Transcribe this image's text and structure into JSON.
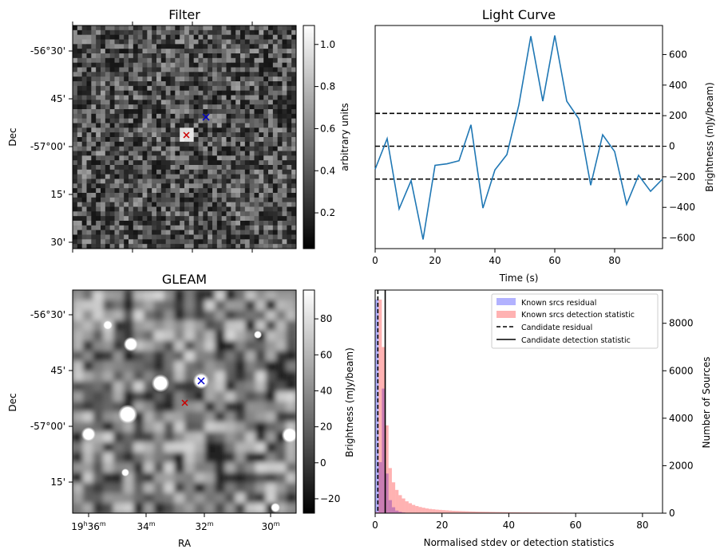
{
  "figure": {
    "panels": {
      "filter": {
        "title": "Filter",
        "ylabel": "Dec",
        "dec_ticks": [
          "-56°30'",
          "45'",
          "-57°00'",
          "15'",
          "30'"
        ],
        "colorbar": {
          "label": "arbitrary units",
          "ticks": [
            "0.2",
            "0.4",
            "0.6",
            "0.8",
            "1.0"
          ],
          "range": [
            0.03,
            1.09
          ],
          "colormap": "gray"
        },
        "markers": [
          {
            "name": "Candidate position",
            "symbol": "x",
            "color": "#0000cc"
          },
          {
            "name": "Nearby source",
            "symbol": "x",
            "color": "#cc0000"
          }
        ]
      },
      "gleam": {
        "title": "GLEAM",
        "ylabel": "Dec",
        "xlabel": "RA",
        "dec_ticks": [
          "-56°30'",
          "45'",
          "-57°00'",
          "15'"
        ],
        "ra_ticks": [
          {
            "main": "19",
            "sup1": "h",
            "mid": "36",
            "sup2": "m"
          },
          {
            "main": "34",
            "sup2": "m"
          },
          {
            "main": "32",
            "sup2": "m"
          },
          {
            "main": "30",
            "sup2": "m"
          }
        ],
        "colorbar": {
          "label": "Brightness (mJy/beam)",
          "ticks": [
            "−20",
            "0",
            "20",
            "40",
            "60",
            "80"
          ],
          "range": [
            -28,
            96
          ],
          "colormap": "gray"
        }
      }
    }
  },
  "chart_data": [
    {
      "type": "line",
      "title": "Light Curve",
      "xlabel": "Time (s)",
      "ylabel": "Brightness (mJy/beam)",
      "xlim": [
        0,
        96
      ],
      "ylim": [
        -670,
        790
      ],
      "x_ticks": [
        "0",
        "20",
        "40",
        "60",
        "80"
      ],
      "y_ticks": [
        "−600",
        "−400",
        "−200",
        "0",
        "200",
        "400",
        "600"
      ],
      "x": [
        0,
        4,
        8,
        12,
        16,
        20,
        24,
        28,
        32,
        36,
        40,
        44,
        48,
        52,
        56,
        60,
        64,
        68,
        72,
        76,
        80,
        84,
        88,
        92,
        96
      ],
      "y": [
        -150,
        50,
        -410,
        -225,
        -610,
        -125,
        -115,
        -95,
        140,
        -405,
        -155,
        -55,
        270,
        720,
        295,
        725,
        295,
        180,
        -255,
        75,
        -35,
        -380,
        -190,
        -295,
        -215
      ],
      "line_color": "#1f77b4",
      "hlines": {
        "values": [
          -215,
          0,
          215
        ],
        "style": "dashed",
        "color": "#000000"
      },
      "yaxis_position": "right",
      "grid": false
    },
    {
      "type": "bar",
      "subtype": "histogram",
      "xlabel": "Normalised stdev or detection statistics",
      "ylabel_left": "Brightness (mJy/beam)",
      "ylabel_right": "Number of Sources",
      "xlim": [
        0,
        86
      ],
      "ylim": [
        0,
        9400
      ],
      "x_ticks": [
        "0",
        "20",
        "40",
        "60",
        "80"
      ],
      "y_ticks": [
        "0",
        "2000",
        "4000",
        "6000",
        "8000"
      ],
      "bin_width": 1,
      "series": [
        {
          "name": "Known srcs residual",
          "color": "#0000ff",
          "opacity": 0.3,
          "values": [
            9000,
            2150,
            5250,
            1670,
            550,
            250,
            110,
            60,
            30,
            15,
            8,
            5,
            3
          ]
        },
        {
          "name": "Known srcs detection statistic",
          "color": "#ff0000",
          "opacity": 0.3,
          "values": [
            50,
            9000,
            7000,
            3700,
            1900,
            1300,
            980,
            760,
            620,
            500,
            420,
            350,
            300,
            260,
            230,
            200,
            180,
            165,
            150,
            140,
            130,
            120,
            110,
            100,
            95,
            90,
            85,
            80,
            75,
            70,
            65,
            62,
            60,
            58,
            55,
            52,
            50,
            48,
            46,
            44,
            42,
            40,
            38,
            36,
            34,
            33,
            32,
            31,
            30,
            29,
            28,
            27,
            26,
            25,
            24,
            23,
            22,
            21,
            20,
            19,
            18,
            17,
            16,
            15,
            14,
            13,
            12,
            11,
            10,
            10,
            9,
            8,
            7,
            6,
            6,
            5,
            5,
            4,
            4,
            3,
            3,
            3,
            2,
            2
          ]
        }
      ],
      "vlines": [
        {
          "name": "Candidate residual",
          "x": 0.8,
          "style": "dashed",
          "color": "#000000"
        },
        {
          "name": "Candidate detection statistic",
          "x": 3.0,
          "style": "solid",
          "color": "#000000"
        }
      ],
      "legend": "top-right",
      "grid": false
    }
  ]
}
